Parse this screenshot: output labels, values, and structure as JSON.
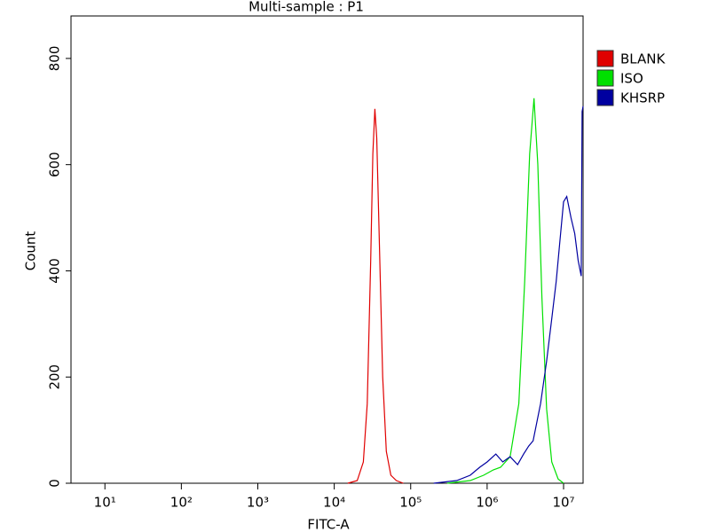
{
  "chart_data": {
    "type": "line",
    "title": "Multi-sample : P1",
    "xlabel": "FITC-A",
    "ylabel": "Count",
    "xscale": "log",
    "xlim": [
      3.6,
      18000000
    ],
    "ylim": [
      0,
      880
    ],
    "xticks": [
      {
        "value": 10,
        "label": "10¹"
      },
      {
        "value": 100,
        "label": "10²"
      },
      {
        "value": 1000,
        "label": "10³"
      },
      {
        "value": 10000,
        "label": "10⁴"
      },
      {
        "value": 100000,
        "label": "10⁵"
      },
      {
        "value": 1000000,
        "label": "10⁶"
      },
      {
        "value": 10000000,
        "label": "10⁷"
      }
    ],
    "yticks": [
      0,
      200,
      400,
      600,
      800
    ],
    "legend": "right",
    "series": [
      {
        "name": "BLANK",
        "color": "#e00000",
        "x": [
          15000,
          20000,
          24000,
          27000,
          30000,
          32000,
          34000,
          36000,
          39000,
          43000,
          48000,
          55000,
          65000,
          80000
        ],
        "values": [
          0,
          5,
          40,
          150,
          420,
          620,
          705,
          650,
          450,
          200,
          60,
          15,
          5,
          0
        ]
      },
      {
        "name": "ISO",
        "color": "#00e000",
        "x": [
          300000,
          600000,
          900000,
          1200000,
          1500000,
          2000000,
          2600000,
          3100000,
          3600000,
          4100000,
          4600000,
          5200000,
          6000000,
          7000000,
          8500000,
          10000000
        ],
        "values": [
          0,
          5,
          15,
          25,
          30,
          50,
          150,
          380,
          620,
          725,
          600,
          350,
          140,
          40,
          8,
          0
        ]
      },
      {
        "name": "KHSRP",
        "color": "#0000a0",
        "x": [
          200000,
          400000,
          600000,
          800000,
          1000000,
          1300000,
          1600000,
          2000000,
          2500000,
          3000000,
          3500000,
          4000000,
          5000000,
          6000000,
          7000000,
          8000000,
          9000000,
          10000000,
          11000000,
          12500000,
          14000000,
          15500000,
          17000000,
          17500000,
          18000000
        ],
        "values": [
          0,
          5,
          15,
          30,
          40,
          55,
          40,
          50,
          35,
          55,
          70,
          80,
          150,
          230,
          310,
          380,
          460,
          530,
          540,
          500,
          470,
          420,
          390,
          700,
          710
        ]
      }
    ]
  }
}
